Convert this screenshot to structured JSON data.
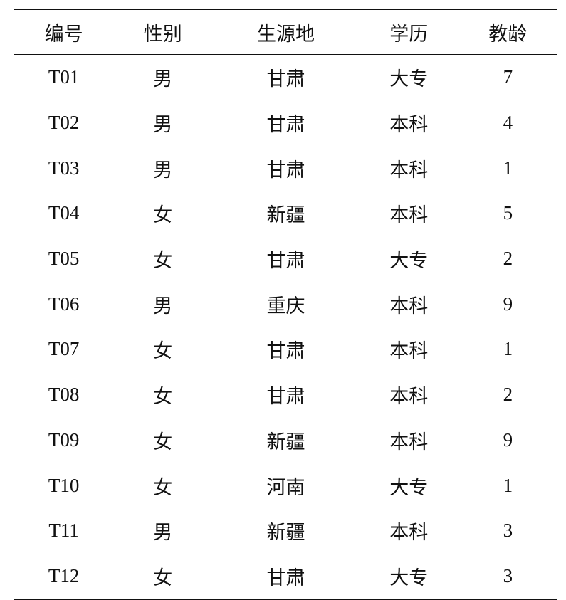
{
  "table": {
    "headers": [
      "编号",
      "性别",
      "生源地",
      "学历",
      "教龄"
    ],
    "rows": [
      [
        "T01",
        "男",
        "甘肃",
        "大专",
        "7"
      ],
      [
        "T02",
        "男",
        "甘肃",
        "本科",
        "4"
      ],
      [
        "T03",
        "男",
        "甘肃",
        "本科",
        "1"
      ],
      [
        "T04",
        "女",
        "新疆",
        "本科",
        "5"
      ],
      [
        "T05",
        "女",
        "甘肃",
        "大专",
        "2"
      ],
      [
        "T06",
        "男",
        "重庆",
        "本科",
        "9"
      ],
      [
        "T07",
        "女",
        "甘肃",
        "本科",
        "1"
      ],
      [
        "T08",
        "女",
        "甘肃",
        "本科",
        "2"
      ],
      [
        "T09",
        "女",
        "新疆",
        "本科",
        "9"
      ],
      [
        "T10",
        "女",
        "河南",
        "大专",
        "1"
      ],
      [
        "T11",
        "男",
        "新疆",
        "本科",
        "3"
      ],
      [
        "T12",
        "女",
        "甘肃",
        "大专",
        "3"
      ]
    ]
  }
}
